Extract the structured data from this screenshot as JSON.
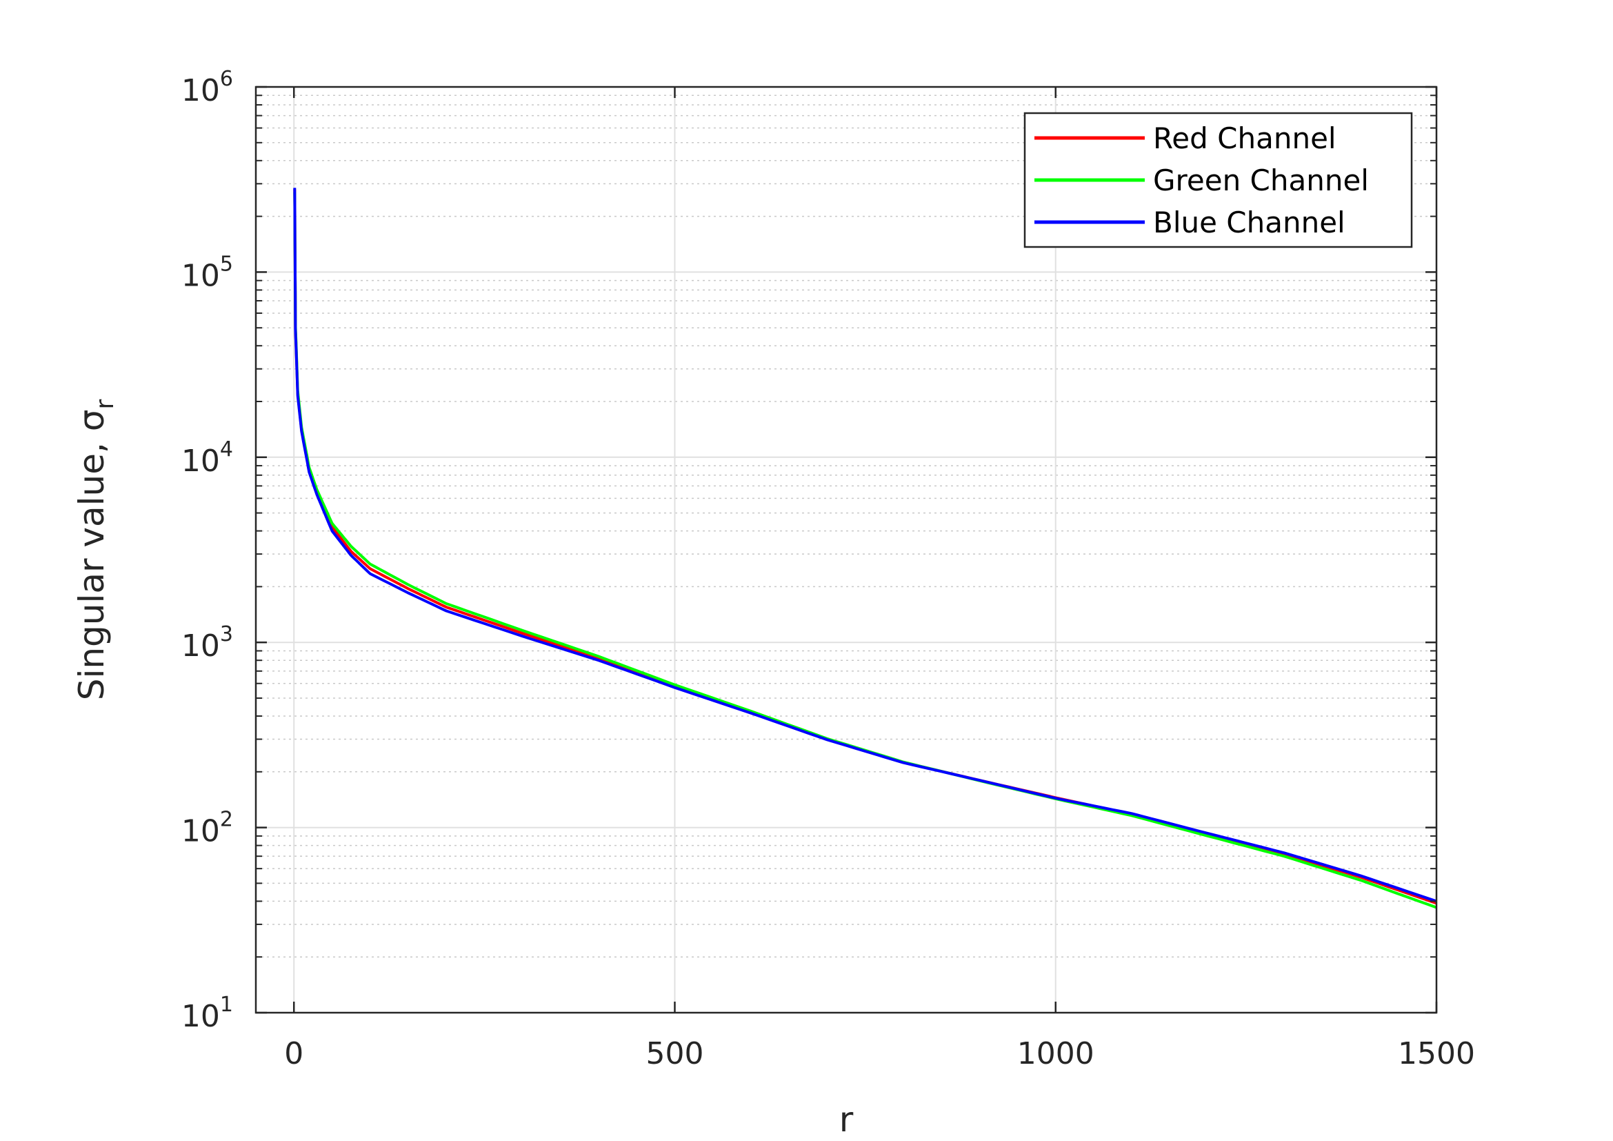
{
  "chart_data": {
    "type": "line",
    "xlabel": "r",
    "ylabel": "Singular value, σ",
    "ylabel_subscript": "r",
    "xlim": [
      -50,
      1500
    ],
    "ylim": [
      10,
      1000000
    ],
    "yscale": "log",
    "grid": true,
    "minor_grid": true,
    "legend_position": "top-right",
    "x_ticks": [
      "0",
      "500",
      "1000",
      "1500"
    ],
    "y_ticks": [
      {
        "base": "10",
        "exp": "1"
      },
      {
        "base": "10",
        "exp": "2"
      },
      {
        "base": "10",
        "exp": "3"
      },
      {
        "base": "10",
        "exp": "4"
      },
      {
        "base": "10",
        "exp": "5"
      },
      {
        "base": "10",
        "exp": "6"
      }
    ],
    "series": [
      {
        "name": "Red Channel",
        "color": "#ff0000",
        "points": [
          [
            1,
            280000
          ],
          [
            2,
            50000
          ],
          [
            5,
            22000
          ],
          [
            10,
            14000
          ],
          [
            20,
            8500
          ],
          [
            30,
            6500
          ],
          [
            50,
            4200
          ],
          [
            75,
            3100
          ],
          [
            100,
            2500
          ],
          [
            150,
            1950
          ],
          [
            200,
            1550
          ],
          [
            300,
            1120
          ],
          [
            400,
            820
          ],
          [
            500,
            580
          ],
          [
            600,
            420
          ],
          [
            700,
            300
          ],
          [
            800,
            225
          ],
          [
            900,
            180
          ],
          [
            1000,
            145
          ],
          [
            1100,
            118
          ],
          [
            1200,
            92
          ],
          [
            1300,
            72
          ],
          [
            1400,
            54
          ],
          [
            1500,
            39
          ]
        ]
      },
      {
        "name": "Green Channel",
        "color": "#00ff00",
        "points": [
          [
            1,
            270000
          ],
          [
            2,
            52000
          ],
          [
            5,
            23000
          ],
          [
            10,
            14500
          ],
          [
            20,
            8800
          ],
          [
            30,
            6700
          ],
          [
            50,
            4400
          ],
          [
            75,
            3300
          ],
          [
            100,
            2650
          ],
          [
            150,
            2050
          ],
          [
            200,
            1620
          ],
          [
            300,
            1160
          ],
          [
            400,
            840
          ],
          [
            500,
            590
          ],
          [
            600,
            425
          ],
          [
            700,
            302
          ],
          [
            800,
            226
          ],
          [
            900,
            179
          ],
          [
            1000,
            143
          ],
          [
            1100,
            116
          ],
          [
            1200,
            90
          ],
          [
            1300,
            70
          ],
          [
            1400,
            52
          ],
          [
            1500,
            37
          ]
        ]
      },
      {
        "name": "Blue Channel",
        "color": "#0000ff",
        "points": [
          [
            1,
            285000
          ],
          [
            2,
            49000
          ],
          [
            5,
            21500
          ],
          [
            10,
            13800
          ],
          [
            20,
            8300
          ],
          [
            30,
            6300
          ],
          [
            50,
            4000
          ],
          [
            75,
            2950
          ],
          [
            100,
            2350
          ],
          [
            150,
            1850
          ],
          [
            200,
            1480
          ],
          [
            300,
            1080
          ],
          [
            400,
            800
          ],
          [
            500,
            570
          ],
          [
            600,
            415
          ],
          [
            700,
            298
          ],
          [
            800,
            224
          ],
          [
            900,
            180
          ],
          [
            1000,
            144
          ],
          [
            1100,
            119
          ],
          [
            1200,
            93
          ],
          [
            1300,
            73
          ],
          [
            1400,
            55
          ],
          [
            1500,
            40
          ]
        ]
      }
    ]
  }
}
